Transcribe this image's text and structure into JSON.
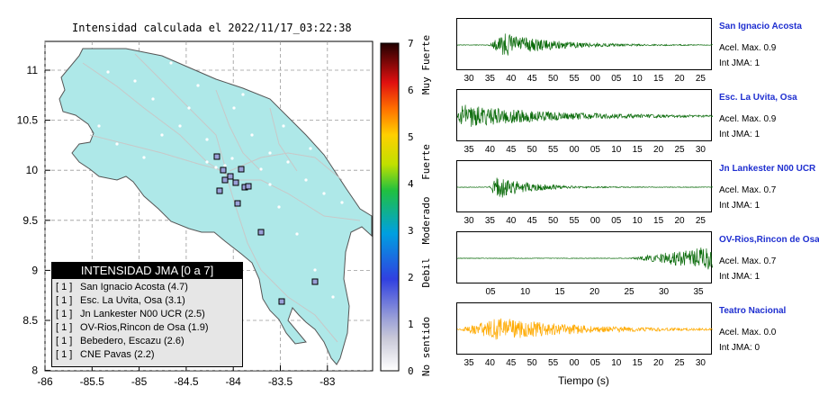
{
  "map": {
    "title": "Intensidad calculada el 2022/11/17_03:22:38",
    "x_ticks": [
      "-86",
      "-85.5",
      "-85",
      "-84.5",
      "-84",
      "-83.5",
      "-83"
    ],
    "y_ticks": [
      "11",
      "10.5",
      "10",
      "9.5",
      "9",
      "8.5",
      "8"
    ],
    "land_color": "#aee8e8",
    "legend": {
      "title": "INTENSIDAD JMA [0 a 7]",
      "items": [
        {
          "code": "[ 1 ]",
          "label": "San Ignacio Acosta (4.7)"
        },
        {
          "code": "[ 1 ]",
          "label": "Esc. La Uvita, Osa (3.1)"
        },
        {
          "code": "[ 1 ]",
          "label": "Jn Lankester N00 UCR (2.5)"
        },
        {
          "code": "[ 1 ]",
          "label": "OV-Rios,Rincon de Osa (1.9)"
        },
        {
          "code": "[ 1 ]",
          "label": "Bebedero, Escazu (2.6)"
        },
        {
          "code": "[ 1 ]",
          "label": "CNE Pavas (2.2)"
        }
      ]
    }
  },
  "colorbar": {
    "ticks": [
      "7",
      "6",
      "5",
      "4",
      "3",
      "2",
      "1",
      "0"
    ],
    "labels": [
      "Muy Fuerte",
      "Fuerte",
      "Moderado",
      "Debil",
      "No sentido"
    ]
  },
  "traces": [
    {
      "name": "San Ignacio Acosta",
      "acel": "Acel. Max. 0.9",
      "jma": "Int JMA: 1",
      "color": "#0a6b0a",
      "ticks": [
        "30",
        "35",
        "40",
        "45",
        "50",
        "55",
        "00",
        "05",
        "10",
        "15",
        "20",
        "25"
      ],
      "burst_start": 0.12,
      "burst_peak": 0.19,
      "decay": 0.18
    },
    {
      "name": "Esc. La Uvita, Osa",
      "acel": "Acel. Max. 0.9",
      "jma": "Int JMA: 1",
      "color": "#0a6b0a",
      "ticks": [
        "35",
        "40",
        "45",
        "50",
        "55",
        "00",
        "05",
        "10",
        "15",
        "20",
        "25",
        "30"
      ],
      "burst_start": 0.0,
      "burst_peak": 0.02,
      "decay": 0.35
    },
    {
      "name": "Jn Lankester N00 UCR",
      "acel": "Acel. Max. 0.7",
      "jma": "Int JMA: 1",
      "color": "#0a6b0a",
      "ticks": [
        "30",
        "35",
        "40",
        "45",
        "50",
        "55",
        "00",
        "05",
        "10",
        "15",
        "20",
        "25"
      ],
      "burst_start": 0.12,
      "burst_peak": 0.16,
      "decay": 0.12
    },
    {
      "name": "OV-Rios,Rincon de Osa",
      "acel": "Acel. Max. 0.7",
      "jma": "Int JMA: 1",
      "color": "#0a6b0a",
      "ticks": [
        "05",
        "10",
        "15",
        "20",
        "25",
        "30",
        "35"
      ],
      "burst_start": 0.67,
      "burst_peak": 0.99,
      "decay": 0.4
    },
    {
      "name": "Teatro Nacional",
      "acel": "Acel. Max. 0.0",
      "jma": "Int JMA: 0",
      "color": "#ffaa00",
      "ticks": [
        "35",
        "40",
        "45",
        "50",
        "55",
        "00",
        "05",
        "10",
        "15",
        "20",
        "25",
        "30"
      ],
      "burst_start": 0.0,
      "burst_peak": 0.17,
      "decay": 0.3
    }
  ],
  "xlabel": "Tiempo (s)"
}
